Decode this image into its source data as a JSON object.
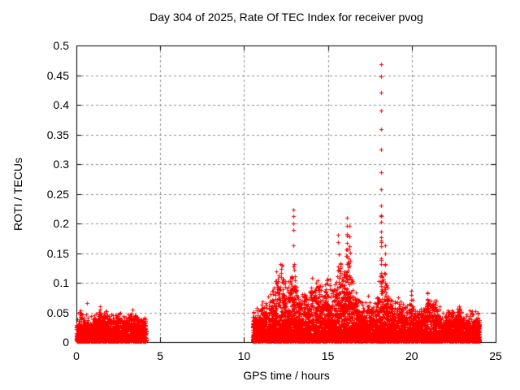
{
  "page": {
    "background": "#ffffff",
    "text_color": "#000000"
  },
  "chart_data": {
    "type": "scatter",
    "title": "Day 304 of 2025, Rate Of TEC Index for receiver pvog",
    "xlabel": "GPS time / hours",
    "ylabel": "ROTI / TECUs",
    "xlim": [
      0,
      25
    ],
    "ylim": [
      0,
      0.5
    ],
    "xticks": [
      0,
      5,
      10,
      15,
      20,
      25
    ],
    "xtick_labels": [
      "0",
      "5",
      "10",
      "15",
      "20",
      "25"
    ],
    "yticks": [
      0,
      0.05,
      0.1,
      0.15,
      0.2,
      0.25,
      0.3,
      0.35,
      0.4,
      0.45,
      0.5
    ],
    "ytick_labels": [
      "0",
      "0.05",
      "0.1",
      "0.15",
      "0.2",
      "0.25",
      "0.3",
      "0.35",
      "0.4",
      "0.45",
      "0.5"
    ],
    "grid": true,
    "grid_color": "#909090",
    "axis_color": "#000000",
    "marker": "+",
    "marker_color": "#ff0000",
    "series_name": "ROTI",
    "seed": 304,
    "epoch_step": 0.01,
    "points_per_epoch": [
      3,
      8
    ],
    "observation_windows": [
      [
        0,
        4.15
      ],
      [
        10.5,
        24.05
      ]
    ],
    "clusters": [
      {
        "x_start": 0.0,
        "x_end": 4.15,
        "base": 0.002,
        "envelope": [
          [
            0.0,
            0.035
          ],
          [
            0.25,
            0.045
          ],
          [
            0.5,
            0.04
          ],
          [
            0.75,
            0.035
          ],
          [
            1.0,
            0.045
          ],
          [
            1.25,
            0.04
          ],
          [
            1.5,
            0.048
          ],
          [
            1.75,
            0.042
          ],
          [
            2.0,
            0.038
          ],
          [
            2.25,
            0.042
          ],
          [
            2.5,
            0.045
          ],
          [
            2.75,
            0.04
          ],
          [
            3.0,
            0.042
          ],
          [
            3.25,
            0.045
          ],
          [
            3.5,
            0.042
          ],
          [
            3.75,
            0.04
          ],
          [
            4.0,
            0.038
          ],
          [
            4.15,
            0.03
          ]
        ]
      },
      {
        "x_start": 10.5,
        "x_end": 24.05,
        "base": 0.002,
        "envelope": [
          [
            10.5,
            0.05
          ],
          [
            10.8,
            0.045
          ],
          [
            11.1,
            0.055
          ],
          [
            11.4,
            0.06
          ],
          [
            11.7,
            0.08
          ],
          [
            12.0,
            0.105
          ],
          [
            12.2,
            0.12
          ],
          [
            12.45,
            0.085
          ],
          [
            12.7,
            0.09
          ],
          [
            12.95,
            0.11
          ],
          [
            13.2,
            0.09
          ],
          [
            13.5,
            0.065
          ],
          [
            13.8,
            0.075
          ],
          [
            14.1,
            0.1
          ],
          [
            14.35,
            0.105
          ],
          [
            14.6,
            0.085
          ],
          [
            14.9,
            0.095
          ],
          [
            15.2,
            0.08
          ],
          [
            15.45,
            0.09
          ],
          [
            15.7,
            0.12
          ],
          [
            15.95,
            0.13
          ],
          [
            16.12,
            0.15
          ],
          [
            16.35,
            0.11
          ],
          [
            16.6,
            0.08
          ],
          [
            16.9,
            0.06
          ],
          [
            17.2,
            0.055
          ],
          [
            17.5,
            0.065
          ],
          [
            17.8,
            0.06
          ],
          [
            18.0,
            0.08
          ],
          [
            18.2,
            0.11
          ],
          [
            18.4,
            0.1
          ],
          [
            18.65,
            0.07
          ],
          [
            18.9,
            0.055
          ],
          [
            19.2,
            0.065
          ],
          [
            19.5,
            0.05
          ],
          [
            19.8,
            0.06
          ],
          [
            19.95,
            0.075
          ],
          [
            20.2,
            0.05
          ],
          [
            20.5,
            0.045
          ],
          [
            20.8,
            0.055
          ],
          [
            20.95,
            0.08
          ],
          [
            21.2,
            0.055
          ],
          [
            21.4,
            0.065
          ],
          [
            21.7,
            0.045
          ],
          [
            22.0,
            0.04
          ],
          [
            22.3,
            0.05
          ],
          [
            22.6,
            0.045
          ],
          [
            22.9,
            0.055
          ],
          [
            23.2,
            0.04
          ],
          [
            23.5,
            0.05
          ],
          [
            23.8,
            0.045
          ],
          [
            24.05,
            0.035
          ]
        ]
      }
    ],
    "spike_events": [
      {
        "x": 0.62,
        "values": [
          0.066
        ]
      },
      {
        "x": 1.4,
        "peak": 0.065,
        "n": 5
      },
      {
        "x": 12.92,
        "values": [
          0.223,
          0.213,
          0.2,
          0.189,
          0.163,
          0.127
        ]
      },
      {
        "x": 15.63,
        "peak": 0.186,
        "n": 8
      },
      {
        "x": 16.12,
        "peak": 0.21,
        "n": 15
      },
      {
        "x": 16.3,
        "peak": 0.198,
        "n": 9
      },
      {
        "x": 18.18,
        "values": [
          0.468,
          0.448,
          0.421,
          0.39,
          0.359,
          0.325,
          0.286,
          0.257,
          0.23
        ]
      },
      {
        "x": 18.18,
        "peak": 0.225,
        "n": 16
      },
      {
        "x": 18.42,
        "peak": 0.165,
        "n": 9
      },
      {
        "x": 19.95,
        "peak": 0.082,
        "n": 6
      },
      {
        "x": 20.95,
        "peak": 0.09,
        "n": 8
      },
      {
        "x": 21.35,
        "peak": 0.072,
        "n": 5
      },
      {
        "x": 22.85,
        "peak": 0.062,
        "n": 5
      },
      {
        "x": 23.45,
        "peak": 0.056,
        "n": 4
      }
    ]
  }
}
